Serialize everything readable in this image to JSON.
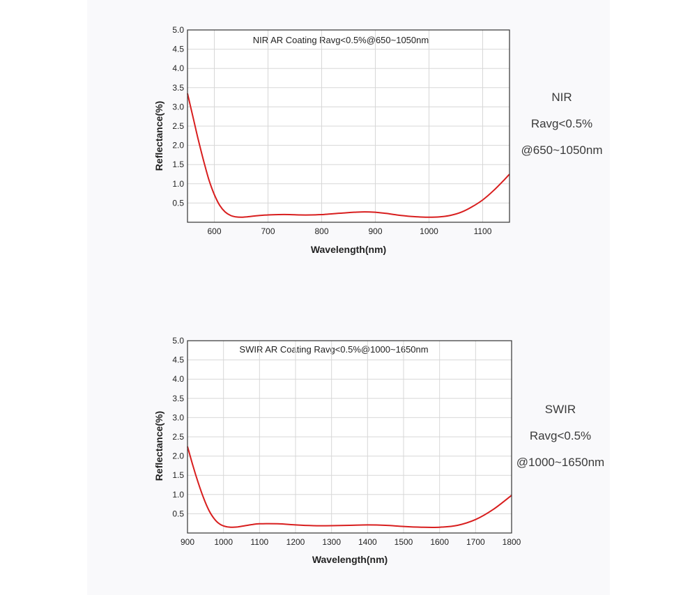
{
  "colors": {
    "curve": "#d81e1e",
    "grid": "#d7d7d7",
    "frame": "#333333",
    "background": "#f9f9fb"
  },
  "nir_side": {
    "line1": "NIR",
    "line2": "Ravg<0.5%",
    "line3": "@650~1050nm"
  },
  "swir_side": {
    "line1": "SWIR",
    "line2": "Ravg<0.5%",
    "line3": "@1000~1650nm"
  },
  "chart_data": [
    {
      "type": "line",
      "title": "NIR AR Coating Ravg<0.5%@650~1050nm",
      "xlabel": "Wavelength(nm)",
      "ylabel": "Reflectance(%)",
      "xlim": [
        550,
        1150
      ],
      "ylim": [
        0,
        5.0
      ],
      "xticks": [
        600,
        700,
        800,
        900,
        1000,
        1100
      ],
      "yticks": [
        0.5,
        1.0,
        1.5,
        2.0,
        2.5,
        3.0,
        3.5,
        4.0,
        4.5,
        5.0
      ],
      "grid": true,
      "series": [
        {
          "x": [
            550,
            560,
            570,
            580,
            590,
            600,
            610,
            620,
            630,
            640,
            650,
            660,
            680,
            700,
            720,
            740,
            760,
            780,
            800,
            820,
            840,
            860,
            880,
            900,
            920,
            940,
            960,
            980,
            1000,
            1020,
            1040,
            1060,
            1080,
            1100,
            1120,
            1140,
            1150
          ],
          "y": [
            3.35,
            2.75,
            2.15,
            1.6,
            1.1,
            0.72,
            0.44,
            0.27,
            0.18,
            0.14,
            0.13,
            0.14,
            0.17,
            0.19,
            0.2,
            0.2,
            0.19,
            0.19,
            0.2,
            0.22,
            0.24,
            0.26,
            0.27,
            0.26,
            0.23,
            0.19,
            0.16,
            0.14,
            0.13,
            0.14,
            0.18,
            0.26,
            0.4,
            0.58,
            0.82,
            1.1,
            1.25
          ]
        }
      ]
    },
    {
      "type": "line",
      "title": "SWIR AR Coating Ravg<0.5%@1000~1650nm",
      "xlabel": "Wavelength(nm)",
      "ylabel": "Reflectance(%)",
      "xlim": [
        900,
        1800
      ],
      "ylim": [
        0,
        5.0
      ],
      "xticks": [
        900,
        1000,
        1100,
        1200,
        1300,
        1400,
        1500,
        1600,
        1700,
        1800
      ],
      "yticks": [
        0.5,
        1.0,
        1.5,
        2.0,
        2.5,
        3.0,
        3.5,
        4.0,
        4.5,
        5.0
      ],
      "grid": true,
      "series": [
        {
          "x": [
            900,
            915,
            930,
            945,
            960,
            975,
            990,
            1005,
            1020,
            1040,
            1060,
            1080,
            1100,
            1150,
            1200,
            1250,
            1300,
            1350,
            1400,
            1450,
            1500,
            1550,
            1600,
            1650,
            1700,
            1750,
            1800
          ],
          "y": [
            2.25,
            1.75,
            1.3,
            0.9,
            0.58,
            0.36,
            0.23,
            0.17,
            0.15,
            0.16,
            0.19,
            0.22,
            0.24,
            0.24,
            0.21,
            0.19,
            0.19,
            0.2,
            0.21,
            0.2,
            0.17,
            0.15,
            0.15,
            0.2,
            0.35,
            0.62,
            0.98
          ]
        }
      ]
    }
  ]
}
